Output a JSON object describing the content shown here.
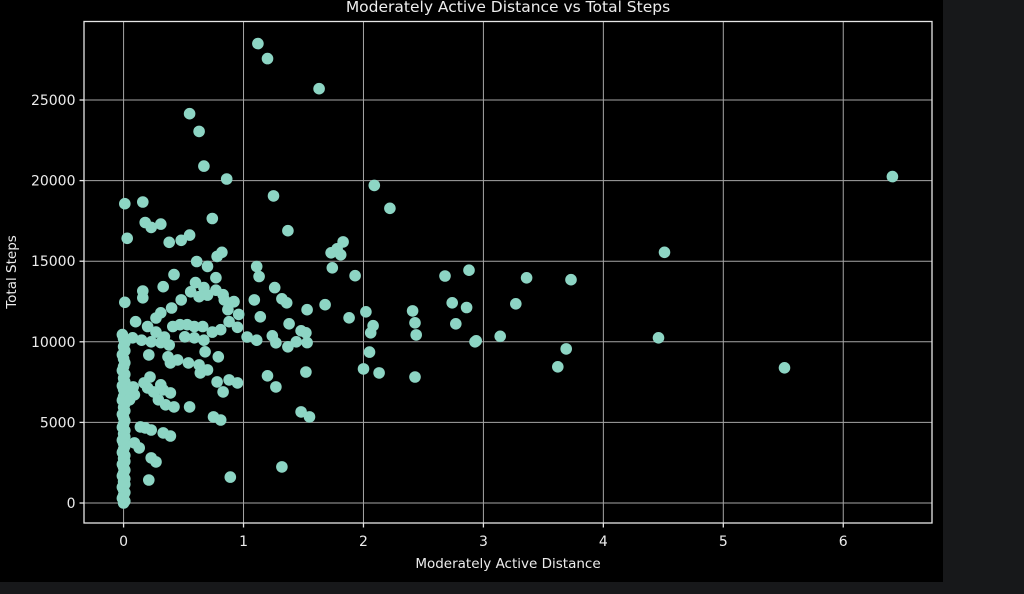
{
  "page": {
    "background": "#17181a",
    "figure_background": "#000000"
  },
  "chart_data": {
    "type": "scatter",
    "title": "Moderately Active Distance vs Total Steps",
    "xlabel": "Moderately Active Distance",
    "ylabel": "Total Steps",
    "x_ticks": [
      "0",
      "1",
      "2",
      "3",
      "4",
      "5",
      "6"
    ],
    "x_tick_values": [
      0,
      1,
      2,
      3,
      4,
      5,
      6
    ],
    "y_ticks": [
      "0",
      "5000",
      "10000",
      "15000",
      "20000",
      "25000"
    ],
    "y_tick_values": [
      0,
      5000,
      10000,
      15000,
      20000,
      25000
    ],
    "xlim": [
      -0.33,
      6.74
    ],
    "ylim": [
      -1240,
      29870
    ],
    "grid": true,
    "legend": null,
    "point_color": "#8dd5c4",
    "grid_color": "#a6a6a6",
    "spine_color": "#e6e6e6",
    "text_color": "#ececec",
    "points": [
      [
        0.0,
        0
      ],
      [
        0.01,
        120
      ],
      [
        -0.01,
        300
      ],
      [
        0.0,
        480
      ],
      [
        0.01,
        650
      ],
      [
        0.0,
        820
      ],
      [
        -0.01,
        990
      ],
      [
        0.01,
        1160
      ],
      [
        0.0,
        1330
      ],
      [
        0.01,
        1500
      ],
      [
        -0.01,
        1680
      ],
      [
        0.0,
        1860
      ],
      [
        0.01,
        2040
      ],
      [
        0.0,
        2220
      ],
      [
        -0.01,
        2400
      ],
      [
        0.01,
        2580
      ],
      [
        0.0,
        2760
      ],
      [
        0.01,
        2950
      ],
      [
        -0.01,
        3140
      ],
      [
        0.0,
        3330
      ],
      [
        0.01,
        3520
      ],
      [
        0.0,
        3710
      ],
      [
        -0.01,
        3900
      ],
      [
        0.01,
        4100
      ],
      [
        0.0,
        4300
      ],
      [
        0.01,
        4500
      ],
      [
        -0.01,
        4700
      ],
      [
        0.0,
        4900
      ],
      [
        0.01,
        5100
      ],
      [
        0.0,
        5300
      ],
      [
        -0.01,
        5500
      ],
      [
        0.01,
        5720
      ],
      [
        0.0,
        5940
      ],
      [
        0.01,
        6160
      ],
      [
        -0.01,
        6380
      ],
      [
        0.0,
        6600
      ],
      [
        0.01,
        6820
      ],
      [
        0.0,
        7050
      ],
      [
        -0.01,
        7280
      ],
      [
        0.01,
        7510
      ],
      [
        0.0,
        7740
      ],
      [
        0.01,
        7980
      ],
      [
        -0.01,
        8220
      ],
      [
        0.0,
        8460
      ],
      [
        0.01,
        8700
      ],
      [
        0.0,
        8950
      ],
      [
        -0.01,
        9200
      ],
      [
        0.01,
        9450
      ],
      [
        0.0,
        9700
      ],
      [
        0.01,
        9950
      ],
      [
        0.0,
        10200
      ],
      [
        -0.01,
        10450
      ],
      [
        1.12,
        28500
      ],
      [
        1.2,
        27570
      ],
      [
        1.63,
        25700
      ],
      [
        0.55,
        24150
      ],
      [
        0.63,
        23050
      ],
      [
        0.67,
        20900
      ],
      [
        0.86,
        20100
      ],
      [
        6.41,
        20250
      ],
      [
        2.09,
        19700
      ],
      [
        1.25,
        19050
      ],
      [
        2.22,
        18280
      ],
      [
        0.01,
        18570
      ],
      [
        0.16,
        18670
      ],
      [
        0.18,
        17400
      ],
      [
        0.23,
        17100
      ],
      [
        0.31,
        17300
      ],
      [
        0.74,
        17650
      ],
      [
        1.37,
        16890
      ],
      [
        0.03,
        16420
      ],
      [
        0.38,
        16170
      ],
      [
        0.48,
        16300
      ],
      [
        0.55,
        16620
      ],
      [
        1.83,
        16200
      ],
      [
        1.78,
        15770
      ],
      [
        1.73,
        15520
      ],
      [
        1.81,
        15400
      ],
      [
        4.51,
        15550
      ],
      [
        0.61,
        14980
      ],
      [
        0.7,
        14680
      ],
      [
        0.78,
        15300
      ],
      [
        0.82,
        15550
      ],
      [
        1.11,
        14670
      ],
      [
        1.13,
        14050
      ],
      [
        0.42,
        14170
      ],
      [
        1.74,
        14590
      ],
      [
        1.93,
        14100
      ],
      [
        2.68,
        14080
      ],
      [
        2.88,
        14440
      ],
      [
        3.36,
        13970
      ],
      [
        3.73,
        13850
      ],
      [
        0.33,
        13420
      ],
      [
        0.6,
        13670
      ],
      [
        0.67,
        13360
      ],
      [
        0.77,
        13980
      ],
      [
        1.26,
        13360
      ],
      [
        0.83,
        12920
      ],
      [
        0.92,
        12480
      ],
      [
        0.01,
        12450
      ],
      [
        0.16,
        13150
      ],
      [
        0.16,
        12730
      ],
      [
        1.32,
        12670
      ],
      [
        1.36,
        12420
      ],
      [
        1.53,
        11990
      ],
      [
        1.68,
        12300
      ],
      [
        2.41,
        11920
      ],
      [
        2.02,
        11860
      ],
      [
        2.74,
        12420
      ],
      [
        2.86,
        12130
      ],
      [
        3.27,
        12360
      ],
      [
        0.31,
        11800
      ],
      [
        0.27,
        11480
      ],
      [
        0.4,
        12100
      ],
      [
        0.48,
        12600
      ],
      [
        0.56,
        13100
      ],
      [
        0.63,
        12800
      ],
      [
        0.7,
        12900
      ],
      [
        0.77,
        13200
      ],
      [
        0.84,
        12600
      ],
      [
        0.92,
        12500
      ],
      [
        0.87,
        12000
      ],
      [
        0.96,
        11700
      ],
      [
        1.09,
        12600
      ],
      [
        1.14,
        11550
      ],
      [
        0.1,
        11250
      ],
      [
        0.2,
        10950
      ],
      [
        0.27,
        10600
      ],
      [
        0.34,
        10300
      ],
      [
        0.41,
        10950
      ],
      [
        0.47,
        11060
      ],
      [
        0.53,
        11060
      ],
      [
        0.59,
        10950
      ],
      [
        0.66,
        10950
      ],
      [
        0.51,
        10310
      ],
      [
        0.59,
        10250
      ],
      [
        0.67,
        10100
      ],
      [
        0.74,
        10600
      ],
      [
        0.81,
        10750
      ],
      [
        0.88,
        11250
      ],
      [
        0.95,
        10900
      ],
      [
        1.03,
        10300
      ],
      [
        1.11,
        10100
      ],
      [
        1.88,
        11490
      ],
      [
        2.08,
        11000
      ],
      [
        2.06,
        10560
      ],
      [
        2.43,
        11180
      ],
      [
        2.44,
        10430
      ],
      [
        2.77,
        11120
      ],
      [
        1.38,
        11120
      ],
      [
        1.48,
        10680
      ],
      [
        1.52,
        10560
      ],
      [
        1.44,
        10000
      ],
      [
        1.37,
        9690
      ],
      [
        1.24,
        10370
      ],
      [
        1.27,
        9940
      ],
      [
        1.53,
        9950
      ],
      [
        2.93,
        10000
      ],
      [
        2.94,
        10060
      ],
      [
        3.14,
        10340
      ],
      [
        4.46,
        10250
      ],
      [
        0.075,
        10250
      ],
      [
        0.15,
        10100
      ],
      [
        0.23,
        10000
      ],
      [
        0.31,
        9950
      ],
      [
        0.38,
        9800
      ],
      [
        2.05,
        9360
      ],
      [
        3.69,
        9560
      ],
      [
        0.21,
        9190
      ],
      [
        0.37,
        9070
      ],
      [
        0.45,
        8880
      ],
      [
        0.39,
        8690
      ],
      [
        0.54,
        8690
      ],
      [
        0.63,
        8570
      ],
      [
        0.68,
        9380
      ],
      [
        0.79,
        9070
      ],
      [
        0.7,
        8260
      ],
      [
        0.64,
        8070
      ],
      [
        2.0,
        8320
      ],
      [
        2.13,
        8070
      ],
      [
        2.43,
        7820
      ],
      [
        1.52,
        8130
      ],
      [
        3.62,
        8450
      ],
      [
        5.51,
        8390
      ],
      [
        1.2,
        7890
      ],
      [
        0.88,
        7640
      ],
      [
        0.95,
        7450
      ],
      [
        0.78,
        7510
      ],
      [
        0.83,
        6890
      ],
      [
        0.22,
        7820
      ],
      [
        0.17,
        7450
      ],
      [
        0.2,
        7140
      ],
      [
        0.25,
        6890
      ],
      [
        0.08,
        7200
      ],
      [
        1.27,
        7200
      ],
      [
        0.09,
        6710
      ],
      [
        0.05,
        6400
      ],
      [
        0.31,
        7330
      ],
      [
        0.33,
        7020
      ],
      [
        0.39,
        6830
      ],
      [
        0.29,
        6400
      ],
      [
        0.35,
        6090
      ],
      [
        0.42,
        5960
      ],
      [
        0.55,
        5960
      ],
      [
        1.48,
        5650
      ],
      [
        1.55,
        5340
      ],
      [
        0.75,
        5340
      ],
      [
        0.81,
        5150
      ],
      [
        0.14,
        4720
      ],
      [
        0.18,
        4660
      ],
      [
        0.23,
        4530
      ],
      [
        0.33,
        4350
      ],
      [
        0.39,
        4160
      ],
      [
        0.09,
        3730
      ],
      [
        0.13,
        3420
      ],
      [
        0.23,
        2800
      ],
      [
        0.27,
        2550
      ],
      [
        1.32,
        2240
      ],
      [
        0.89,
        1610
      ],
      [
        0.21,
        1430
      ]
    ]
  }
}
